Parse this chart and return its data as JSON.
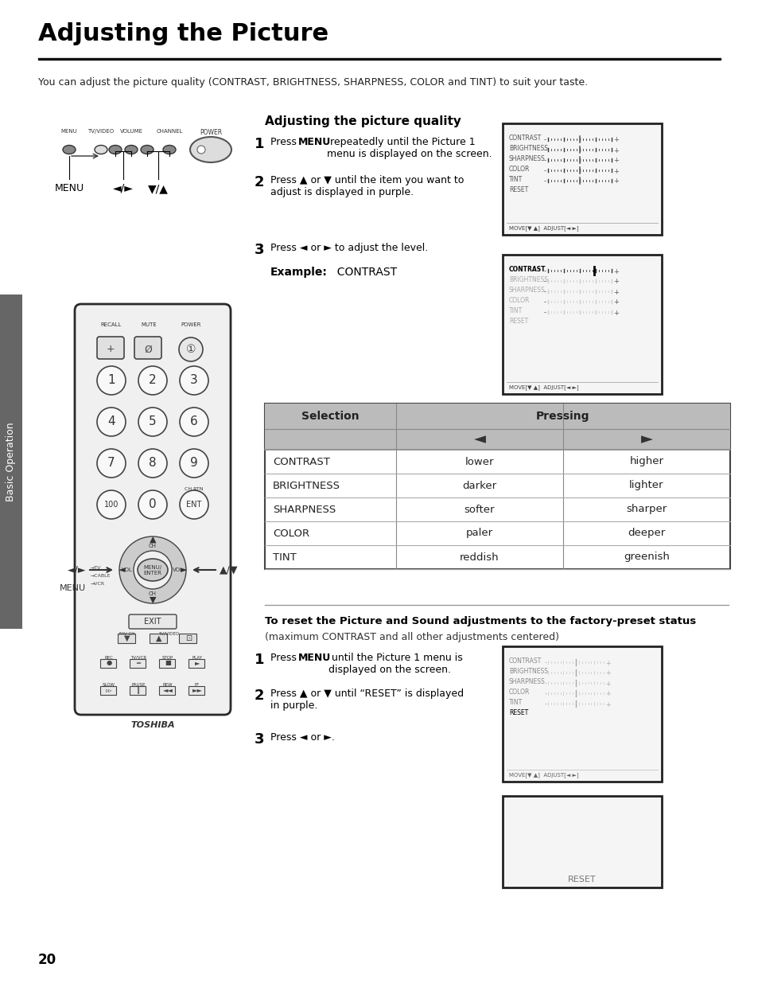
{
  "title": "Adjusting the Picture",
  "subtitle": "You can adjust the picture quality (CONTRAST, BRIGHTNESS, SHARPNESS, COLOR and TINT) to suit your taste.",
  "section1_title": "Adjusting the picture quality",
  "step1_a": "Press ",
  "step1_bold": "MENU",
  "step1_b": " repeatedly until the Picture 1\nmenu is displayed on the screen.",
  "step2": "Press ▲ or ▼ until the item you want to\nadjust is displayed in purple.",
  "step3": "Press ◄ or ► to adjust the level.",
  "example_label": "Example:",
  "example_value": "  CONTRAST",
  "section2_title": "To reset the Picture and Sound adjustments to the factory-preset status",
  "section2_sub": "(maximum CONTRAST and all other adjustments centered)",
  "reset_step1_a": "Press ",
  "reset_step1_bold": "MENU",
  "reset_step1_b": " until the Picture 1 menu is\ndisplayed on the screen.",
  "reset_step2": "Press ▲ or ▼ until “RESET” is displayed\nin purple.",
  "reset_step3": "Press ◄ or ►.",
  "page_num": "20",
  "sidebar": "Basic Operation",
  "table_header_selection": "Selection",
  "table_header_pressing": "Pressing",
  "table_rows": [
    [
      "CONTRAST",
      "lower",
      "higher"
    ],
    [
      "BRIGHTNESS",
      "darker",
      "lighter"
    ],
    [
      "SHARPNESS",
      "softer",
      "sharper"
    ],
    [
      "COLOR",
      "paler",
      "deeper"
    ],
    [
      "TINT",
      "reddish",
      "greenish"
    ]
  ],
  "menu_items": [
    "CONTRAST",
    "BRIGHTNESS",
    "SHARPNESS",
    "COLOR",
    "TINT",
    "RESET"
  ],
  "bg_color": "#ffffff",
  "sidebar_bg": "#666666",
  "table_header_bg": "#bbbbbb",
  "border_color": "#222222",
  "remote_bg": "#f2f2f2",
  "remote_border": "#333333"
}
